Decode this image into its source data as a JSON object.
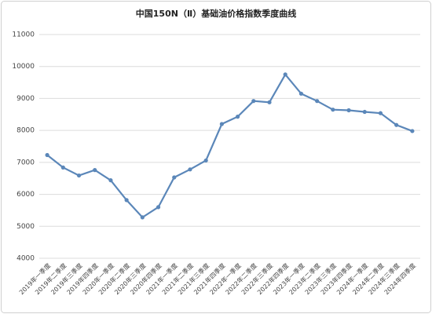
{
  "chart_data": {
    "type": "line",
    "title": "中国150N（Ⅱ）基础油价格指数季度曲线",
    "categories": [
      "2019年一季度",
      "2019年二季度",
      "2019年三季度",
      "2019年四季度",
      "2020年一季度",
      "2020年二季度",
      "2020年三季度",
      "2020年四季度",
      "2021年一季度",
      "2021年二季度",
      "2021年三季度",
      "2021年四季度",
      "2022年一季度",
      "2022年二季度",
      "2022年三季度",
      "2022年四季度",
      "2023年一季度",
      "2023年二季度",
      "2023年三季度",
      "2023年四季度",
      "2024年一季度",
      "2024年二季度",
      "2024年三季度",
      "2024年四季度"
    ],
    "series": [
      {
        "name": "中国150N（Ⅱ）基础油价格指数",
        "color": "#5b87b9",
        "values": [
          7230,
          6840,
          6590,
          6760,
          6440,
          5820,
          5280,
          5600,
          6530,
          6780,
          7060,
          8200,
          8430,
          8920,
          8880,
          9750,
          9150,
          8920,
          8650,
          8630,
          8580,
          8540,
          8170,
          7980
        ]
      }
    ],
    "ylim": [
      4000,
      11000
    ],
    "yticks": [
      4000,
      5000,
      6000,
      7000,
      8000,
      9000,
      10000,
      11000
    ],
    "grid": true
  }
}
